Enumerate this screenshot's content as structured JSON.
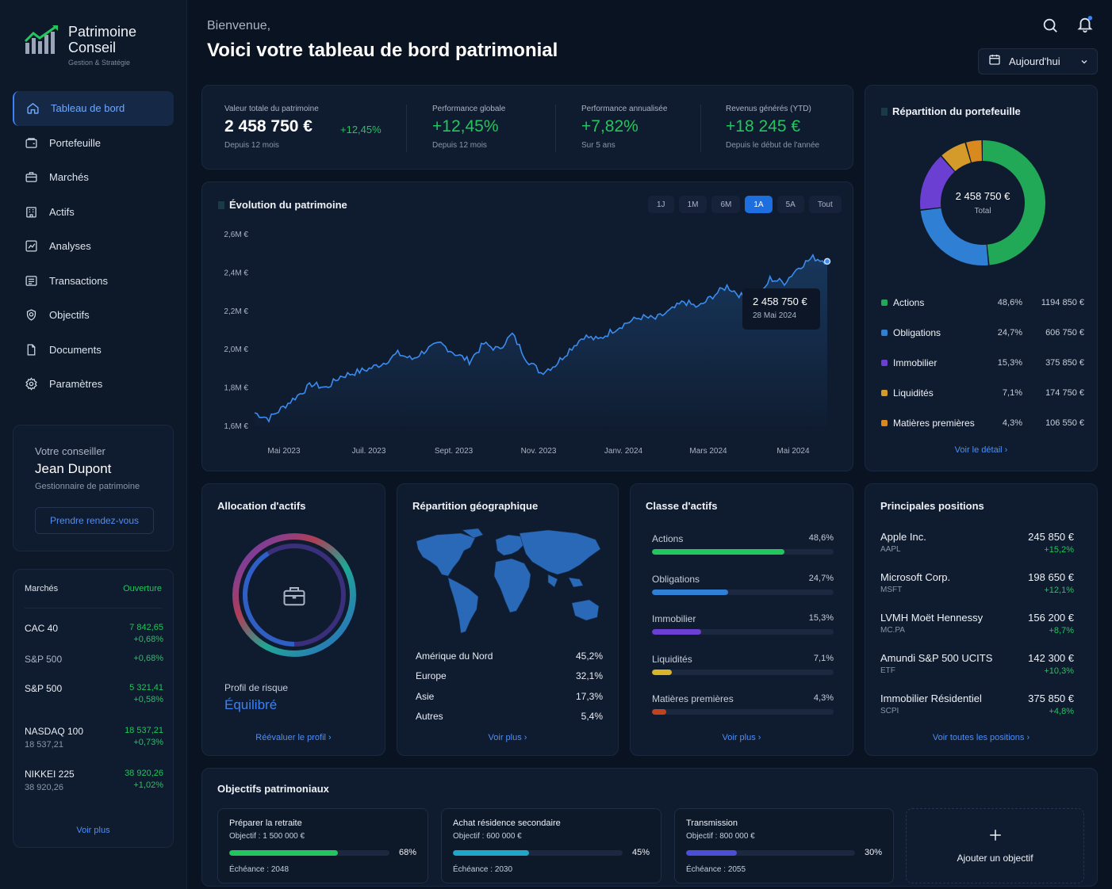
{
  "brand": {
    "name_line1": "Patrimoine",
    "name_line2": "Conseil",
    "tagline": "Gestion & Stratégie"
  },
  "nav": [
    {
      "label": "Tableau de bord",
      "icon": "home-icon",
      "active": true
    },
    {
      "label": "Portefeuille",
      "icon": "wallet-icon"
    },
    {
      "label": "Marchés",
      "icon": "briefcase-icon"
    },
    {
      "label": "Actifs",
      "icon": "building-icon"
    },
    {
      "label": "Analyses",
      "icon": "chart-icon"
    },
    {
      "label": "Transactions",
      "icon": "list-icon"
    },
    {
      "label": "Objectifs",
      "icon": "target-icon"
    },
    {
      "label": "Documents",
      "icon": "document-icon"
    },
    {
      "label": "Paramètres",
      "icon": "gear-icon"
    }
  ],
  "advisor": {
    "caption": "Votre conseiller",
    "name": "Jean Dupont",
    "role": "Gestionnaire de patrimoine",
    "button": "Prendre rendez-vous"
  },
  "markets": {
    "title": "Marchés",
    "status": "Ouverture",
    "rows": [
      {
        "name": "CAC 40",
        "sub": "",
        "value": "7 842,65",
        "change": "+0,68%"
      },
      {
        "name": "S&P 500",
        "sub": "",
        "value": "",
        "change": "+0,68%"
      },
      {
        "name": "S&P 500",
        "sub": "",
        "value": "5 321,41",
        "change": "+0,58%"
      },
      {
        "name": "NASDAQ 100",
        "sub": "18 537,21",
        "value": "18 537,21",
        "change": "+0,73%"
      },
      {
        "name": "NIKKEI 225",
        "sub": "38 920,26",
        "value": "38 920,26",
        "change": "+1,02%"
      }
    ],
    "more": "Voir plus"
  },
  "header": {
    "greeting": "Bienvenue,",
    "title": "Voici votre tableau de bord patrimonial",
    "date_select": "Aujourd'hui"
  },
  "kpis": [
    {
      "label": "Valeur totale du patrimoine",
      "value": "2 458 750 €",
      "extra": "+12,45%",
      "sub": "Depuis 12 mois"
    },
    {
      "label": "Performance globale",
      "value": "+12,45%",
      "sub": "Depuis 12 mois"
    },
    {
      "label": "Performance annualisée",
      "value": "+7,82%",
      "sub": "Sur 5 ans"
    },
    {
      "label": "Revenus générés (YTD)",
      "value": "+18 245 €",
      "sub": "Depuis le début de l'année"
    }
  ],
  "evolution": {
    "title": "Évolution du patrimoine",
    "ranges": [
      "1J",
      "1M",
      "6M",
      "1A",
      "5A",
      "Tout"
    ],
    "active_range": "1A",
    "tooltip_value": "2 458 750 €",
    "tooltip_date": "28 Mai 2024"
  },
  "chart_data": {
    "type": "line",
    "title": "Évolution du patrimoine",
    "y_ticks": [
      "2,6M €",
      "2,4M €",
      "2,2M €",
      "2,0M €",
      "1,8M €",
      "1,6M €"
    ],
    "x_ticks": [
      "Mai 2023",
      "Juil. 2023",
      "Sept. 2023",
      "Nov. 2023",
      "Janv. 2024",
      "Mars 2024",
      "Mai 2024"
    ],
    "ylim": [
      1.6,
      2.6
    ],
    "unit": "M €",
    "x": [
      0,
      1,
      2,
      3,
      4,
      5,
      6,
      7,
      8,
      9,
      10,
      11,
      12,
      13,
      14,
      15,
      16,
      17,
      18,
      19,
      20,
      21,
      22,
      23,
      24,
      25,
      26,
      27,
      28,
      29,
      30,
      31,
      32,
      33,
      34,
      35,
      36,
      37,
      38,
      39,
      40
    ],
    "values": [
      1.67,
      1.64,
      1.7,
      1.76,
      1.82,
      1.8,
      1.86,
      1.88,
      1.9,
      1.93,
      1.98,
      1.95,
      2.0,
      2.03,
      1.98,
      1.94,
      2.03,
      2.0,
      2.08,
      1.95,
      1.88,
      1.92,
      2.0,
      2.07,
      2.05,
      2.1,
      2.14,
      2.17,
      2.16,
      2.2,
      2.25,
      2.22,
      2.28,
      2.33,
      2.28,
      2.23,
      2.37,
      2.35,
      2.43,
      2.48,
      2.46
    ]
  },
  "allocation_portfolio": {
    "title": "Répartition du portefeuille",
    "center_value": "2 458 750 €",
    "center_label": "Total",
    "items": [
      {
        "name": "Actions",
        "pct": "48,6%",
        "amount": "1194 850 €",
        "color": "#22a957",
        "share": 48.6
      },
      {
        "name": "Obligations",
        "pct": "24,7%",
        "amount": "606 750 €",
        "color": "#2f7fd4",
        "share": 24.7
      },
      {
        "name": "Immobilier",
        "pct": "15,3%",
        "amount": "375 850 €",
        "color": "#6a3fd1",
        "share": 15.3
      },
      {
        "name": "Liquidités",
        "pct": "7,1%",
        "amount": "174 750 €",
        "color": "#d49a2a",
        "share": 7.1
      },
      {
        "name": "Matières premières",
        "pct": "4,3%",
        "amount": "106 550 €",
        "color": "#d98a1f",
        "share": 4.3
      }
    ],
    "link": "Voir le détail"
  },
  "asset_allocation": {
    "title": "Allocation d'actifs",
    "risk_label": "Profil de risque",
    "risk_value": "Équilibré",
    "link": "Réévaluer le profil"
  },
  "geo": {
    "title": "Répartition géographique",
    "rows": [
      {
        "name": "Amérique du Nord",
        "pct": "45,2%"
      },
      {
        "name": "Europe",
        "pct": "32,1%"
      },
      {
        "name": "Asie",
        "pct": "17,3%"
      },
      {
        "name": "Autres",
        "pct": "5,4%"
      }
    ],
    "link": "Voir plus"
  },
  "classes": {
    "title": "Classe d'actifs",
    "rows": [
      {
        "name": "Actions",
        "pct": "48,6%",
        "fill": 0.73,
        "color": "#22c55e"
      },
      {
        "name": "Obligations",
        "pct": "24,7%",
        "fill": 0.42,
        "color": "#2f7fd4"
      },
      {
        "name": "Immobilier",
        "pct": "15,3%",
        "fill": 0.27,
        "color": "#6a3fd1"
      },
      {
        "name": "Liquidités",
        "pct": "7,1%",
        "fill": 0.11,
        "color": "#d9b32a"
      },
      {
        "name": "Matières premières",
        "pct": "4,3%",
        "fill": 0.08,
        "color": "#c0431f"
      }
    ],
    "link": "Voir plus"
  },
  "positions": {
    "title": "Principales positions",
    "rows": [
      {
        "name": "Apple Inc.",
        "ticker": "AAPL",
        "value": "245 850 €",
        "change": "+15,2%"
      },
      {
        "name": "Microsoft Corp.",
        "ticker": "MSFT",
        "value": "198 650 €",
        "change": "+12,1%"
      },
      {
        "name": "LVMH Moët Hennessy",
        "ticker": "MC.PA",
        "value": "156 200 €",
        "change": "+8,7%"
      },
      {
        "name": "Amundi S&P 500 UCITS",
        "ticker": "ETF",
        "value": "142 300 €",
        "change": "+10,3%"
      },
      {
        "name": "Immobilier Résidentiel",
        "ticker": "SCPI",
        "value": "375 850 €",
        "change": "+4,8%"
      }
    ],
    "link": "Voir toutes les positions"
  },
  "goals": {
    "title": "Objectifs patrimoniaux",
    "items": [
      {
        "name": "Préparer la retraite",
        "target": "Objectif : 1 500 000 €",
        "pct": "68%",
        "fill": 0.68,
        "due": "Échéance : 2048",
        "color": "#22c55e"
      },
      {
        "name": "Achat résidence secondaire",
        "target": "Objectif : 600 000 €",
        "pct": "45%",
        "fill": 0.45,
        "due": "Échéance : 2030",
        "color": "#1fa6c9"
      },
      {
        "name": "Transmission",
        "target": "Objectif : 800 000 €",
        "pct": "30%",
        "fill": 0.3,
        "due": "Échéance : 2055",
        "color": "#4a4fd6"
      }
    ],
    "add_label": "Ajouter un objectif"
  }
}
